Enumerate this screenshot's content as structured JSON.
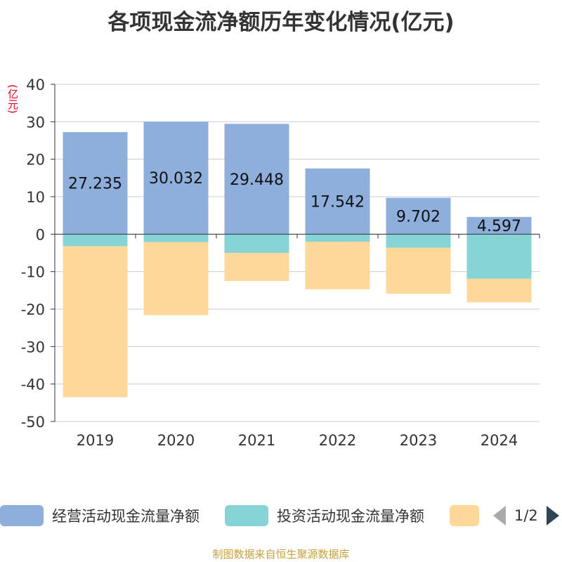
{
  "title": "各项现金流净额历年变化情况(亿元)",
  "unit_label": "(亿元)",
  "source": "制图数据来自恒生聚源数据库",
  "legend": {
    "items": [
      {
        "label": "经营活动现金流量净额",
        "color": "#8eaedb"
      },
      {
        "label": "投资活动现金流量净额",
        "color": "#86d4d6"
      },
      {
        "label": "",
        "color": "#fdd898"
      }
    ],
    "page": "1/2"
  },
  "chart_data": {
    "type": "bar",
    "stacked": true,
    "title": "各项现金流净额历年变化情况(亿元)",
    "ylabel": "(亿元)",
    "ylim": [
      -50,
      40
    ],
    "yticks": [
      40,
      30,
      20,
      10,
      0,
      -10,
      -20,
      -30,
      -40,
      -50
    ],
    "categories": [
      "2019",
      "2020",
      "2021",
      "2022",
      "2023",
      "2024"
    ],
    "series": [
      {
        "name": "经营活动现金流量净额",
        "color": "#8eaedb",
        "values": [
          27.235,
          30.032,
          29.448,
          17.542,
          9.702,
          4.597
        ],
        "labels": [
          "27.235",
          "30.032",
          "29.448",
          "17.542",
          "9.702",
          "4.597"
        ]
      },
      {
        "name": "投资活动现金流量净额",
        "color": "#86d4d6",
        "values": [
          -3.2,
          -2.1,
          -5.0,
          -2.0,
          -3.6,
          -11.9
        ]
      },
      {
        "name": "",
        "color": "#fdd898",
        "values": [
          -40.3,
          -19.5,
          -7.5,
          -12.7,
          -12.3,
          -6.3
        ]
      }
    ]
  }
}
